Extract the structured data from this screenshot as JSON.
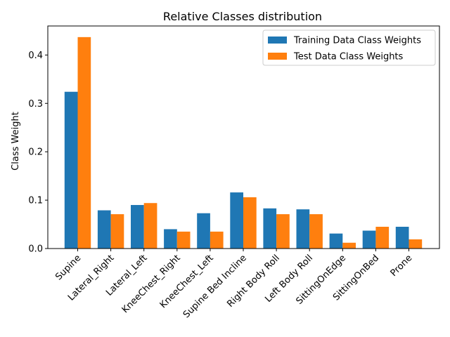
{
  "chart_data": {
    "type": "bar",
    "title": "Relative Classes distribution",
    "xlabel": "",
    "ylabel": "Class Weight",
    "ylim": [
      0,
      0.46
    ],
    "yticks": [
      "0.0",
      "0.1",
      "0.2",
      "0.3",
      "0.4"
    ],
    "yticks_values": [
      0.0,
      0.1,
      0.2,
      0.3,
      0.4
    ],
    "grid": false,
    "legend_position": "top-right",
    "categories": [
      "Supine",
      "Lateral_Right",
      "Lateral_Left",
      "KneeChest_Right",
      "KneeChest_Left",
      "Supine Bed Incline",
      "Right Body Roll",
      "Left Body Roll",
      "SittingOnEdge",
      "SittingOnBed",
      "Prone"
    ],
    "series": [
      {
        "name": "Training Data Class Weights",
        "color": "#1f77b4",
        "values": [
          0.324,
          0.079,
          0.09,
          0.04,
          0.073,
          0.116,
          0.083,
          0.081,
          0.031,
          0.037,
          0.045
        ]
      },
      {
        "name": "Test Data Class Weights",
        "color": "#ff7f0e",
        "values": [
          0.437,
          0.071,
          0.094,
          0.035,
          0.035,
          0.106,
          0.071,
          0.071,
          0.012,
          0.045,
          0.019
        ]
      }
    ]
  }
}
